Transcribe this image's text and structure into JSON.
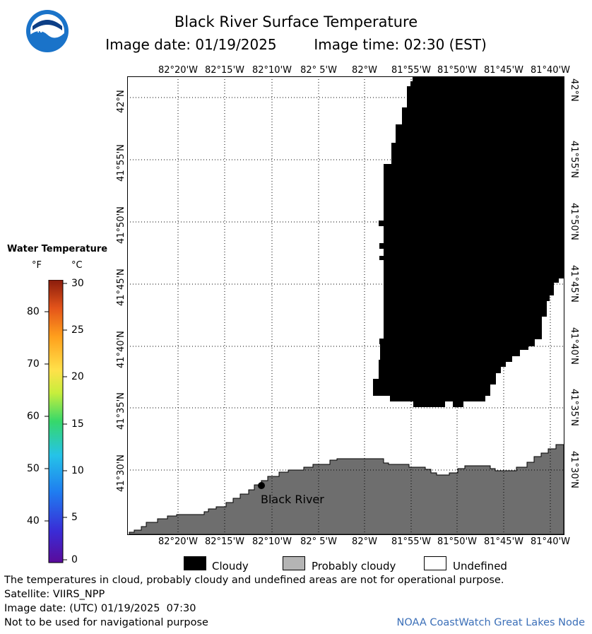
{
  "header": {
    "title": "Black River Surface Temperature",
    "image_date_label": "Image date: 01/19/2025",
    "image_time_label": "Image time: 02:30 (EST)"
  },
  "logo": {
    "text": "NOAA"
  },
  "map": {
    "lon_labels": [
      "82°20'W",
      "82°15'W",
      "82°10'W",
      "82° 5'W",
      "82°W",
      "81°55'W",
      "81°50'W",
      "81°45'W",
      "81°40'W"
    ],
    "lat_labels": [
      "42°N",
      "41°55'N",
      "41°50'N",
      "41°45'N",
      "41°40'N",
      "41°35'N",
      "41°30'N"
    ],
    "place_label": "Black River",
    "colors": {
      "cloud": "#000000",
      "land": "#6e6e6e",
      "water_undefined": "#ffffff",
      "grid": "#000000"
    }
  },
  "legend": {
    "title": "Water Temperature",
    "unit_f": "°F",
    "unit_c": "°C",
    "f_ticks": [
      "80",
      "70",
      "60",
      "50",
      "40"
    ],
    "c_ticks": [
      "30",
      "25",
      "20",
      "15",
      "10",
      "5",
      "0"
    ],
    "colormap": [
      "#5a0b9a",
      "#3a2bd6",
      "#1f7df0",
      "#25c3e8",
      "#36d86a",
      "#c7ee3c",
      "#ffe14a",
      "#ff9f1c",
      "#e4541a",
      "#8a1c0c"
    ]
  },
  "key": {
    "cloudy": "Cloudy",
    "probably_cloudy": "Probably cloudy",
    "undefined": "Undefined",
    "colors": {
      "cloudy": "#000000",
      "probably_cloudy": "#b4b4b4",
      "undefined": "#ffffff"
    }
  },
  "footer": {
    "disclaimer": "The temperatures in cloud, probably cloudy and undefined areas are not for operational purpose.",
    "satellite": "Satellite: VIIRS_NPP",
    "utc_date": "Image date: (UTC) 01/19/2025  07:30",
    "nav_warning": "Not to be used for navigational purpose",
    "credit": "NOAA CoastWatch Great Lakes Node"
  }
}
